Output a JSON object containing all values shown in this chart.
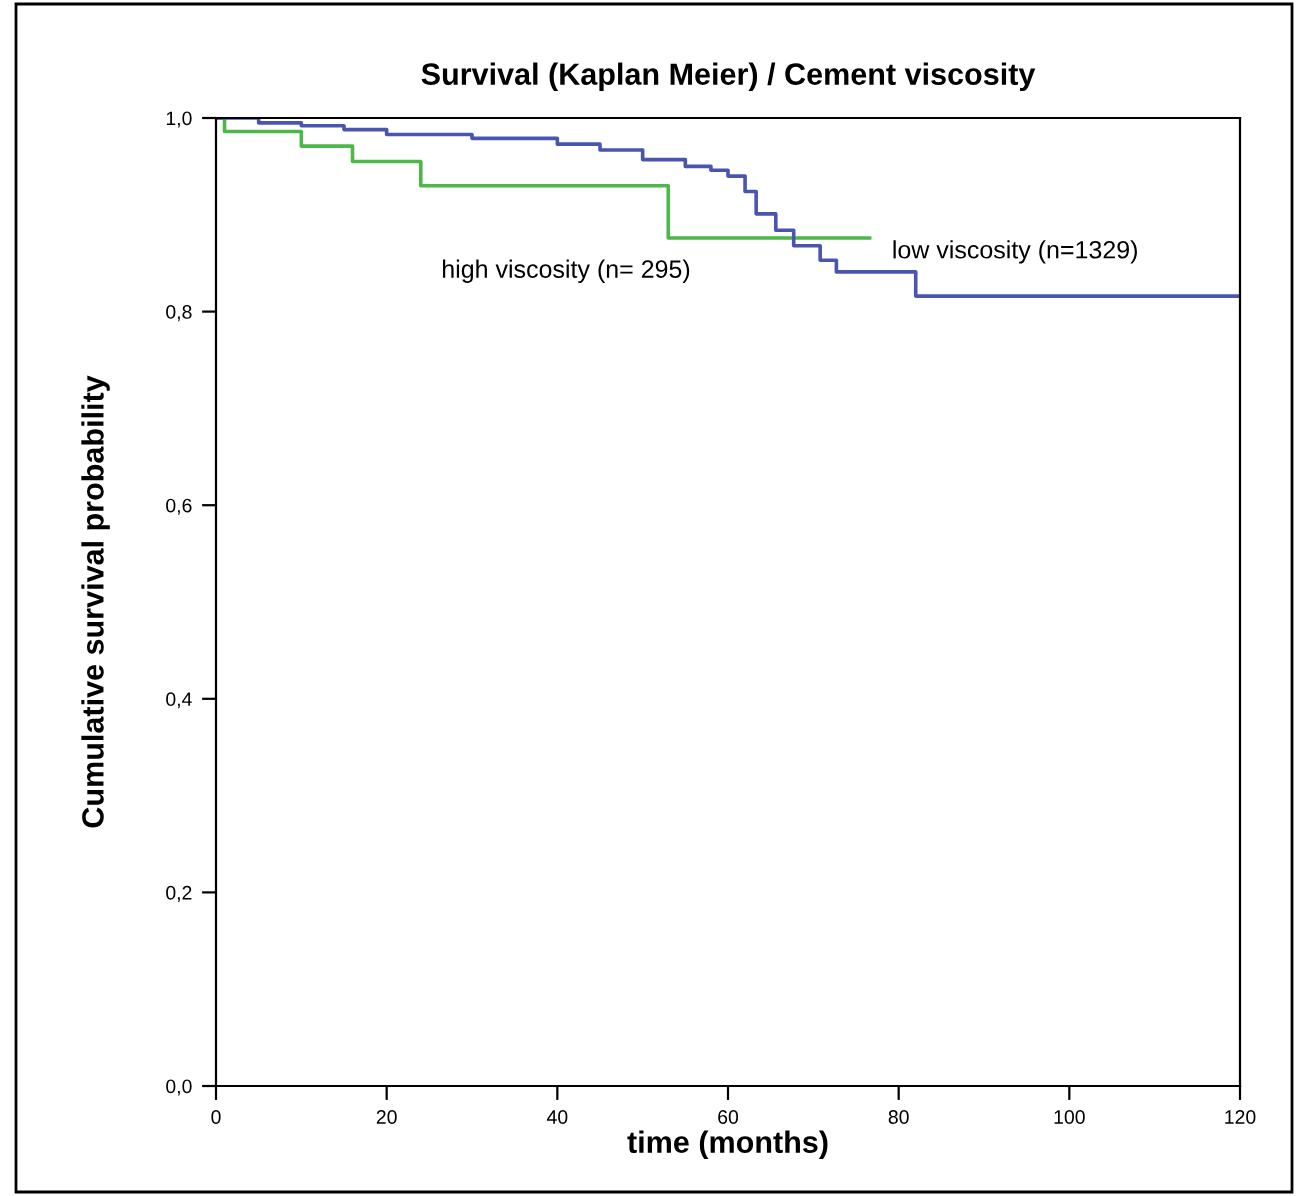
{
  "chart_data": {
    "type": "step",
    "title": "Survival (Kaplan Meier) / Cement viscosity",
    "xlabel": "time (months)",
    "ylabel": "Cumulative survival probability",
    "series": [
      {
        "name": "high viscosity (n= 295)",
        "color": "#4cb84a",
        "x": [
          0,
          1,
          10,
          16,
          24,
          53,
          76.6
        ],
        "values": [
          1.0,
          0.986,
          0.971,
          0.955,
          0.93,
          0.876,
          0.876
        ]
      },
      {
        "name": "low viscosity (n=1329)",
        "color": "#4a55b0",
        "x": [
          0,
          5,
          10,
          15,
          20,
          30,
          40,
          45,
          50,
          55,
          58,
          60,
          62,
          63.3,
          65.6,
          67.7,
          70.8,
          72.7,
          82,
          120
        ],
        "values": [
          1.0,
          0.995,
          0.992,
          0.988,
          0.983,
          0.979,
          0.973,
          0.967,
          0.957,
          0.95,
          0.946,
          0.94,
          0.924,
          0.901,
          0.884,
          0.868,
          0.853,
          0.841,
          0.816,
          0.816
        ]
      }
    ],
    "xlim": [
      0,
      120
    ],
    "xticks": [
      0,
      20,
      40,
      60,
      80,
      100,
      120
    ],
    "ylim": [
      0,
      1
    ],
    "yticks": [
      {
        "value": 0,
        "label": "0,0"
      },
      {
        "value": 0.2,
        "label": "0,2"
      },
      {
        "value": 0.4,
        "label": "0,4"
      },
      {
        "value": 0.6,
        "label": "0,6"
      },
      {
        "value": 0.8,
        "label": "0,8"
      },
      {
        "value": 1.0,
        "label": "1,0"
      }
    ],
    "grid": false,
    "legend": false
  }
}
